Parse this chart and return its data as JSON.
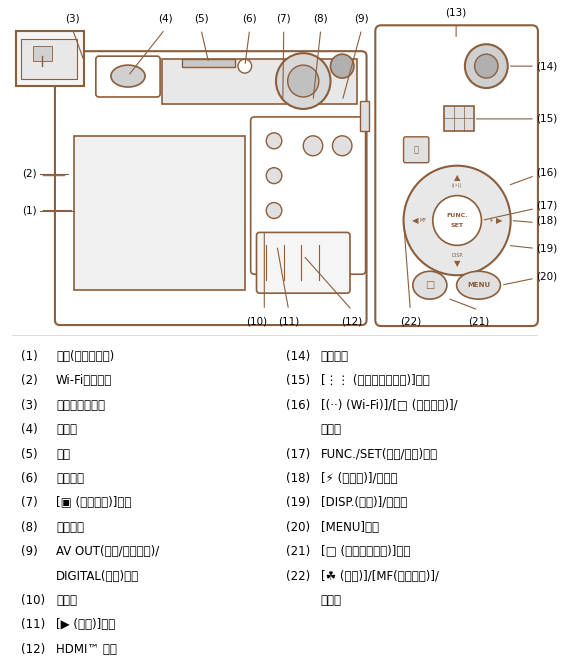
{
  "bg_color": "#ffffff",
  "text_color": "#000000",
  "brown_color": "#8B5E3C",
  "left_labels": [
    [
      "(1)",
      "屏幕(液晶显示屏)"
    ],
    [
      "(2)",
      "Wi-Fi天线区域"
    ],
    [
      "(3)",
      "屈光度调整转盘"
    ],
    [
      "(4)",
      "取景器"
    ],
    [
      "(5)",
      "热靴"
    ],
    [
      "(6)",
      "电源按钮"
    ],
    [
      "(7)",
      "[▣ (快捷按钮)]按钮"
    ],
    [
      "(8)",
      "遥控端子"
    ],
    [
      "(9)",
      "AV OUT(音频/视频输出)/\nDIGITAL(数码)端子"
    ],
    [
      "(10)",
      "指示灯"
    ],
    [
      "(11)",
      "[▶ (播放)]按钮"
    ],
    [
      "(12)",
      "HDMI™ 端子"
    ]
  ],
  "right_labels": [
    [
      "(14)",
      "短片按钮"
    ],
    [
      "(15)",
      "[⋮ (自动对焦框选择)]按钮"
    ],
    [
      "(16)",
      "[(·) (Wi-Fi)]/[□ (单张拍摄)]/\n上按钮"
    ],
    [
      "(17)",
      "FUNC./SET(功能/设置)按钮"
    ],
    [
      "(18)",
      "[⚡ (闪光灯)]/右按钮"
    ],
    [
      "(19)",
      "[DISP.(显示)]/下按钮"
    ],
    [
      "(20)",
      "[MENU]按钮"
    ],
    [
      "(21)",
      "[□ (移动设备连接)]按钮"
    ],
    [
      "(22)",
      "[☘ (微距)]/[MF(手动对焦)]/\n左按钮"
    ]
  ],
  "figsize": [
    5.61,
    6.65
  ],
  "dpi": 100
}
